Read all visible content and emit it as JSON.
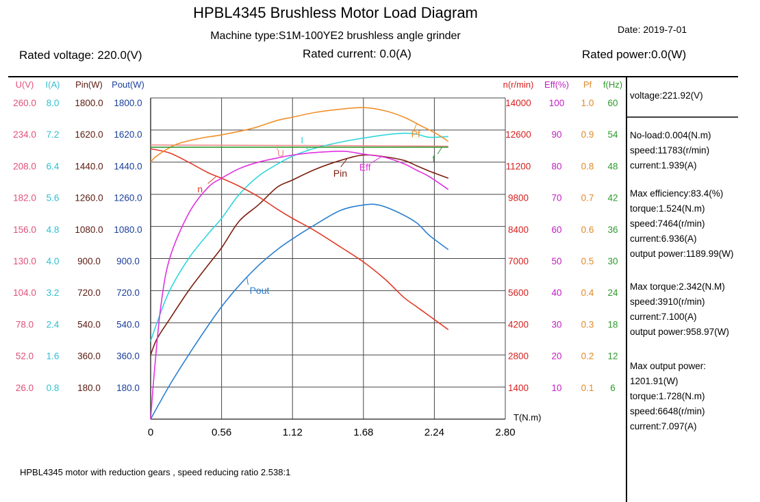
{
  "header": {
    "title": "HPBL4345 Brushless Motor Load Diagram",
    "machine_type": "Machine type:S1M-100YE2 brushless angle grinder",
    "date": "Date: 2019-7-01",
    "rated_voltage": "Rated voltage: 220.0(V)",
    "rated_current": "Rated current: 0.0(A)",
    "rated_power": "Rated power:0.0(W)"
  },
  "footer_note": "HPBL4345  motor with reduction gears , speed reducing ratio 2.538:1",
  "side_panel": {
    "voltage": "voltage:221.92(V)",
    "no_load": [
      "No-load:0.004(N.m)",
      "speed:11783(r/min)",
      "current:1.939(A)"
    ],
    "max_efficiency": [
      "Max efficiency:83.4(%)",
      "torque:1.524(N.m)",
      "speed:7464(r/min)",
      "current:6.936(A)",
      "output power:1189.99(W)"
    ],
    "max_torque": [
      "Max torque:2.342(N.M)",
      "speed:3910(r/min)",
      "current:7.100(A)",
      "output power:958.97(W)"
    ],
    "max_output": [
      "Max output power:",
      "1201.91(W)",
      "torque:1.728(N.m)",
      "speed:6648(r/min)",
      "current:7.097(A)"
    ]
  },
  "chart_data": {
    "type": "line",
    "xlabel": "T(N.m)",
    "x_ticks": [
      "0",
      "0.56",
      "1.12",
      "1.68",
      "2.24",
      "2.80"
    ],
    "xlim": [
      0,
      2.8
    ],
    "grid": true,
    "colors": {
      "U": "#f08a8a",
      "I": "#2fd6dc",
      "Pin": "#7a1d0e",
      "Pout": "#2a7fd0",
      "n": "#e03a26",
      "Eff": "#e030e0",
      "Pf": "#f0902a",
      "f": "#2e9a2e",
      "u_axis": "#e0507a",
      "i_axis": "#2fbfd0",
      "pin_axis": "#5a1a10",
      "pout_axis": "#1a3f9a",
      "n_axis": "#d81e1e",
      "eff_axis": "#c020c0",
      "pf_axis": "#e08a2a",
      "f_axis": "#2e9a2e"
    },
    "left_axes": [
      {
        "header": "U(V)",
        "colorKey": "u_axis",
        "ticks": [
          "260.0",
          "234.0",
          "208.0",
          "182.0",
          "156.0",
          "130.0",
          "104.0",
          "78.0",
          "52.0",
          "26.0"
        ]
      },
      {
        "header": "I(A)",
        "colorKey": "i_axis",
        "ticks": [
          "8.0",
          "7.2",
          "6.4",
          "5.6",
          "4.8",
          "4.0",
          "3.2",
          "2.4",
          "1.6",
          "0.8"
        ]
      },
      {
        "header": "Pin(W)",
        "colorKey": "pin_axis",
        "ticks": [
          "1800.0",
          "1620.0",
          "1440.0",
          "1260.0",
          "1080.0",
          "900.0",
          "720.0",
          "540.0",
          "360.0",
          "180.0"
        ]
      },
      {
        "header": "Pout(W)",
        "colorKey": "pout_axis",
        "ticks": [
          "1800.0",
          "1620.0",
          "1440.0",
          "1260.0",
          "1080.0",
          "900.0",
          "720.0",
          "540.0",
          "360.0",
          "180.0"
        ]
      }
    ],
    "right_axes": [
      {
        "header": "n(r/min)",
        "colorKey": "n_axis",
        "ticks": [
          "14000",
          "12600",
          "11200",
          "9800",
          "8400",
          "7000",
          "5600",
          "4200",
          "2800",
          "1400"
        ]
      },
      {
        "header": "Eff(%)",
        "colorKey": "eff_axis",
        "ticks": [
          "100",
          "90",
          "80",
          "70",
          "60",
          "50",
          "40",
          "30",
          "20",
          "10"
        ]
      },
      {
        "header": "Pf",
        "colorKey": "pf_axis",
        "ticks": [
          "1.0",
          "0.9",
          "0.8",
          "0.7",
          "0.6",
          "0.5",
          "0.4",
          "0.3",
          "0.2",
          "0.1"
        ]
      },
      {
        "header": "f(Hz)",
        "colorKey": "f_axis",
        "ticks": [
          "60",
          "54",
          "48",
          "42",
          "36",
          "30",
          "24",
          "18",
          "12",
          "6"
        ]
      }
    ],
    "series": [
      {
        "name": "U",
        "unit": "V",
        "ymax": 260,
        "x": [
          0,
          0.56,
          1.12,
          1.68,
          2.24,
          2.35
        ],
        "y": [
          221.9,
          221.7,
          221.5,
          221.3,
          221.0,
          220.9
        ]
      },
      {
        "name": "I",
        "unit": "A",
        "ymax": 8,
        "x": [
          0,
          0.05,
          0.15,
          0.3,
          0.45,
          0.56,
          0.7,
          0.85,
          1.0,
          1.12,
          1.3,
          1.5,
          1.68,
          1.85,
          2.0,
          2.1,
          2.2,
          2.35
        ],
        "y": [
          1.94,
          2.4,
          3.2,
          4.0,
          4.6,
          5.0,
          5.6,
          6.05,
          6.35,
          6.55,
          6.75,
          6.9,
          7.0,
          7.08,
          7.12,
          7.1,
          7.02,
          7.04
        ]
      },
      {
        "name": "Pin",
        "unit": "W",
        "ymax": 1800,
        "x": [
          0,
          0.05,
          0.15,
          0.3,
          0.45,
          0.56,
          0.7,
          0.85,
          1.0,
          1.12,
          1.3,
          1.5,
          1.68,
          1.85,
          2.0,
          2.1,
          2.2,
          2.35
        ],
        "y": [
          360,
          450,
          560,
          720,
          860,
          960,
          1110,
          1200,
          1300,
          1340,
          1400,
          1450,
          1480,
          1470,
          1450,
          1420,
          1390,
          1350
        ]
      },
      {
        "name": "Pout",
        "unit": "W",
        "ymax": 1800,
        "x": [
          0,
          0.15,
          0.3,
          0.45,
          0.56,
          0.7,
          0.85,
          1.0,
          1.12,
          1.3,
          1.5,
          1.68,
          1.8,
          1.95,
          2.1,
          2.2,
          2.35
        ],
        "y": [
          0,
          190,
          360,
          520,
          630,
          750,
          860,
          950,
          1010,
          1090,
          1170,
          1200,
          1200,
          1160,
          1100,
          1030,
          950
        ]
      },
      {
        "name": "n",
        "unit": "r/min",
        "ymax": 14000,
        "x": [
          0,
          0.15,
          0.3,
          0.45,
          0.56,
          0.7,
          0.85,
          1.0,
          1.12,
          1.3,
          1.5,
          1.68,
          1.85,
          2.0,
          2.1,
          2.2,
          2.35
        ],
        "y": [
          11783,
          11600,
          11200,
          10750,
          10500,
          10150,
          9700,
          9150,
          8750,
          8200,
          7500,
          6850,
          6100,
          5300,
          4900,
          4500,
          3900
        ]
      },
      {
        "name": "Eff",
        "unit": "%",
        "ymax": 100,
        "x": [
          0,
          0.03,
          0.08,
          0.15,
          0.3,
          0.45,
          0.56,
          0.7,
          0.85,
          1.0,
          1.12,
          1.3,
          1.52,
          1.68,
          1.85,
          2.0,
          2.1,
          2.2,
          2.35
        ],
        "y": [
          0,
          15,
          35,
          50,
          64,
          72,
          75,
          78,
          80,
          81.3,
          82.2,
          83,
          83.4,
          82.5,
          81.5,
          79.5,
          77.5,
          75.5,
          71.5
        ]
      },
      {
        "name": "Pf",
        "unit": "",
        "ymax": 1,
        "x": [
          0,
          0.05,
          0.2,
          0.4,
          0.56,
          0.8,
          1.0,
          1.12,
          1.3,
          1.5,
          1.68,
          1.85,
          2.0,
          2.15,
          2.25,
          2.35
        ],
        "y": [
          0.8,
          0.82,
          0.855,
          0.875,
          0.885,
          0.905,
          0.93,
          0.94,
          0.955,
          0.965,
          0.97,
          0.96,
          0.94,
          0.91,
          0.89,
          0.865
        ]
      },
      {
        "name": "f",
        "unit": "Hz",
        "ymax": 60,
        "x": [
          0,
          2.35
        ],
        "y": [
          50.8,
          50.8
        ]
      }
    ],
    "curve_labels": [
      {
        "text": "U",
        "series": "U",
        "x": 1.0,
        "dx": 0,
        "dy": 16
      },
      {
        "text": "I",
        "series": "I",
        "x": 1.25,
        "dx": -12,
        "dy": -10
      },
      {
        "text": "Pf",
        "series": "Pf",
        "x": 2.1,
        "dx": -8,
        "dy": 20
      },
      {
        "text": "f",
        "series": "f",
        "x": 2.3,
        "dx": -14,
        "dy": 22
      },
      {
        "text": "n",
        "series": "n",
        "x": 0.52,
        "dx": -28,
        "dy": 24
      },
      {
        "text": "Pin",
        "series": "Pin",
        "x": 1.55,
        "dx": -20,
        "dy": 26
      },
      {
        "text": "Eff",
        "series": "Eff",
        "x": 1.82,
        "dx": -32,
        "dy": 20
      },
      {
        "text": "Pout",
        "series": "Pout",
        "x": 0.76,
        "dx": 4,
        "dy": 24
      }
    ]
  }
}
